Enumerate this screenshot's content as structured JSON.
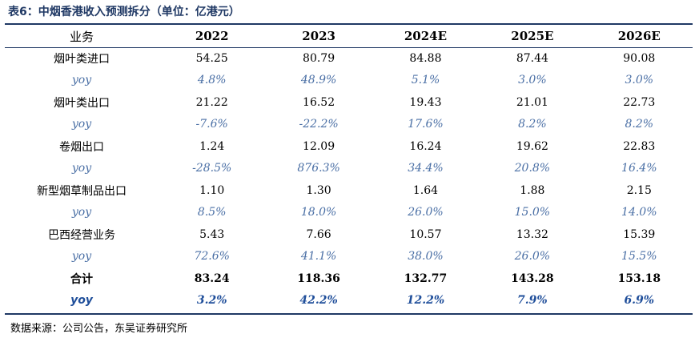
{
  "title": "表6：中烟香港收入预测拆分（单位：亿港元）",
  "table": {
    "headers": [
      "业务",
      "2022",
      "2023",
      "2024E",
      "2025E",
      "2026E"
    ],
    "rows": [
      {
        "type": "value",
        "label": "烟叶类进口",
        "values": [
          "54.25",
          "80.79",
          "84.88",
          "87.44",
          "90.08"
        ]
      },
      {
        "type": "yoy",
        "label": "yoy",
        "values": [
          "4.8%",
          "48.9%",
          "5.1%",
          "3.0%",
          "3.0%"
        ]
      },
      {
        "type": "value",
        "label": "烟叶类出口",
        "values": [
          "21.22",
          "16.52",
          "19.43",
          "21.01",
          "22.73"
        ]
      },
      {
        "type": "yoy",
        "label": "yoy",
        "values": [
          "-7.6%",
          "-22.2%",
          "17.6%",
          "8.2%",
          "8.2%"
        ]
      },
      {
        "type": "value",
        "label": "卷烟出口",
        "values": [
          "1.24",
          "12.09",
          "16.24",
          "19.62",
          "22.83"
        ]
      },
      {
        "type": "yoy",
        "label": "yoy",
        "values": [
          "-28.5%",
          "876.3%",
          "34.4%",
          "20.8%",
          "16.4%"
        ]
      },
      {
        "type": "value",
        "label": "新型烟草制品出口",
        "values": [
          "1.10",
          "1.30",
          "1.64",
          "1.88",
          "2.15"
        ]
      },
      {
        "type": "yoy",
        "label": "yoy",
        "values": [
          "8.5%",
          "18.0%",
          "26.0%",
          "15.0%",
          "14.0%"
        ]
      },
      {
        "type": "value",
        "label": "巴西经营业务",
        "values": [
          "5.43",
          "7.66",
          "10.57",
          "13.32",
          "15.39"
        ]
      },
      {
        "type": "yoy",
        "label": "yoy",
        "values": [
          "72.6%",
          "41.1%",
          "38.0%",
          "26.0%",
          "15.5%"
        ]
      },
      {
        "type": "total",
        "label": "合计",
        "values": [
          "83.24",
          "118.36",
          "132.77",
          "143.28",
          "153.18"
        ]
      },
      {
        "type": "total-yoy",
        "label": "yoy",
        "values": [
          "3.2%",
          "42.2%",
          "12.2%",
          "7.9%",
          "6.9%"
        ]
      }
    ]
  },
  "source": "数据来源：公司公告，东吴证券研究所"
}
